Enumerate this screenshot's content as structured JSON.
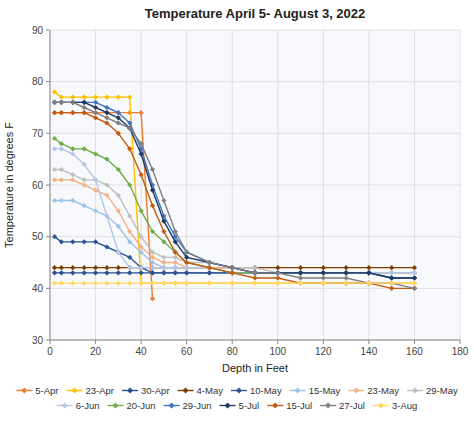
{
  "chart_data": {
    "type": "line",
    "title": "Temperature April 5- August 3, 2022",
    "xlabel": "Depth in Feet",
    "ylabel": "Temperature in degrees F",
    "xlim": [
      0,
      180
    ],
    "ylim": [
      30,
      90
    ],
    "xticks": [
      0,
      20,
      40,
      60,
      80,
      100,
      120,
      140,
      160,
      180
    ],
    "yticks": [
      30,
      40,
      50,
      60,
      70,
      80,
      90
    ],
    "grid": true,
    "legend": "bottom",
    "marker": "diamond",
    "series": [
      {
        "name": "5-Apr",
        "color": "#ed7d31",
        "x": [
          2,
          5,
          10,
          15,
          20,
          25,
          30,
          35,
          40,
          45
        ],
        "values": [
          74,
          74,
          74,
          74,
          74,
          74,
          74,
          74,
          74,
          38
        ]
      },
      {
        "name": "23-Apr",
        "color": "#ffc000",
        "x": [
          2,
          5,
          10,
          15,
          20,
          25,
          30,
          35,
          40,
          45,
          50,
          55,
          60,
          70,
          80,
          90,
          100,
          110,
          120,
          130,
          140,
          150,
          160
        ],
        "values": [
          78,
          77,
          77,
          77,
          77,
          77,
          77,
          77,
          41,
          41,
          41,
          41,
          41,
          41,
          41,
          41,
          41,
          41,
          41,
          41,
          41,
          41,
          41
        ]
      },
      {
        "name": "30-Apr",
        "color": "#264f8c",
        "x": [
          2,
          5,
          10,
          15,
          20,
          25,
          30,
          35,
          40,
          45,
          50,
          55,
          60,
          70,
          80,
          90,
          100,
          110,
          120,
          130,
          140,
          150,
          160
        ],
        "values": [
          43,
          43,
          43,
          43,
          43,
          43,
          43,
          43,
          43,
          43,
          43,
          43,
          43,
          43,
          43,
          43,
          43,
          43,
          43,
          43,
          43,
          43,
          43
        ]
      },
      {
        "name": "4-May",
        "color": "#7b3f00",
        "x": [
          2,
          5,
          10,
          15,
          20,
          25,
          30,
          35,
          40,
          45,
          50,
          55,
          60,
          70,
          80,
          90,
          100,
          110,
          120,
          130,
          140,
          150,
          160
        ],
        "values": [
          44,
          44,
          44,
          44,
          44,
          44,
          44,
          44,
          44,
          44,
          44,
          44,
          44,
          44,
          44,
          44,
          44,
          44,
          44,
          44,
          44,
          44,
          44
        ]
      },
      {
        "name": "10-May",
        "color": "#2f5597",
        "x": [
          2,
          5,
          10,
          15,
          20,
          25,
          30,
          35,
          40,
          45,
          50,
          55,
          60,
          70,
          80,
          90,
          100,
          110,
          120,
          130,
          140,
          150,
          160
        ],
        "values": [
          50,
          49,
          49,
          49,
          49,
          48,
          47,
          46,
          44,
          43,
          43,
          43,
          43,
          43,
          43,
          43,
          43,
          43,
          43,
          43,
          43,
          42,
          42
        ]
      },
      {
        "name": "15-May",
        "color": "#9dc3e6",
        "x": [
          2,
          5,
          10,
          15,
          20,
          25,
          30,
          35,
          40,
          45,
          50,
          55,
          60,
          70,
          80,
          90,
          100,
          110,
          120,
          130,
          140,
          150,
          160
        ],
        "values": [
          57,
          57,
          57,
          56,
          55,
          54,
          52,
          49,
          47,
          45,
          44,
          44,
          44,
          44,
          44,
          43,
          43,
          43,
          43,
          43,
          43,
          43,
          43
        ]
      },
      {
        "name": "23-May",
        "color": "#f4b183",
        "x": [
          2,
          5,
          10,
          15,
          20,
          25,
          30,
          35,
          40,
          45,
          50,
          55,
          60,
          70,
          80,
          90,
          100,
          110,
          120,
          130,
          140,
          150,
          160
        ],
        "values": [
          61,
          61,
          61,
          60,
          59,
          58,
          55,
          51,
          48,
          46,
          45,
          45,
          44,
          44,
          44,
          43,
          43,
          43,
          43,
          43,
          43,
          43,
          43
        ]
      },
      {
        "name": "29-May",
        "color": "#bfbfbf",
        "x": [
          2,
          5,
          10,
          15,
          20,
          25,
          30,
          35,
          40,
          45,
          50,
          55,
          60,
          70,
          80,
          90,
          100,
          110,
          120,
          130,
          140,
          150,
          160
        ],
        "values": [
          63,
          63,
          62,
          61,
          61,
          60,
          58,
          54,
          50,
          47,
          46,
          46,
          45,
          45,
          44,
          44,
          43,
          43,
          43,
          43,
          43,
          43,
          43
        ]
      },
      {
        "name": "6-Jun",
        "color": "#b4c7e7",
        "x": [
          2,
          5,
          10,
          15,
          20,
          25,
          30,
          35,
          40,
          45,
          50,
          55,
          60,
          70,
          80,
          90,
          100,
          110,
          120,
          130,
          140,
          150,
          160
        ],
        "values": [
          67,
          67,
          66,
          64,
          61,
          54,
          47,
          44,
          44,
          44,
          44,
          44,
          44,
          44,
          43,
          43,
          43,
          43,
          43,
          43,
          43,
          43,
          43
        ]
      },
      {
        "name": "20-Jun",
        "color": "#70ad47",
        "x": [
          2,
          5,
          10,
          15,
          20,
          25,
          30,
          35,
          40,
          45,
          50,
          55,
          60,
          70,
          80,
          90,
          100,
          110,
          120,
          130,
          140,
          150,
          160
        ],
        "values": [
          69,
          68,
          67,
          67,
          66,
          65,
          63,
          60,
          55,
          51,
          49,
          47,
          45,
          44,
          43,
          43,
          43,
          43,
          43,
          43,
          43,
          42,
          42
        ]
      },
      {
        "name": "29-Jun",
        "color": "#4472c4",
        "x": [
          2,
          5,
          10,
          15,
          20,
          25,
          30,
          35,
          40,
          45,
          50,
          55,
          60,
          70,
          80,
          90,
          100,
          110,
          120,
          130,
          140,
          150,
          160
        ],
        "values": [
          76,
          76,
          76,
          76,
          76,
          75,
          74,
          72,
          67,
          60,
          54,
          50,
          47,
          45,
          44,
          43,
          43,
          43,
          43,
          43,
          43,
          42,
          42
        ]
      },
      {
        "name": "5-Jul",
        "color": "#1f3864",
        "x": [
          2,
          5,
          10,
          15,
          20,
          25,
          30,
          35,
          40,
          45,
          50,
          55,
          60,
          70,
          80,
          90,
          100,
          110,
          120,
          130,
          140,
          150,
          160
        ],
        "values": [
          76,
          76,
          76,
          76,
          75,
          74,
          73,
          71,
          66,
          59,
          53,
          49,
          46,
          45,
          44,
          43,
          43,
          43,
          43,
          43,
          43,
          42,
          42
        ]
      },
      {
        "name": "15-Jul",
        "color": "#c55a11",
        "x": [
          2,
          5,
          10,
          15,
          20,
          25,
          30,
          35,
          40,
          45,
          50,
          55,
          60,
          70,
          80,
          90,
          100,
          110,
          120,
          130,
          140,
          150,
          160
        ],
        "values": [
          74,
          74,
          74,
          74,
          73,
          72,
          70,
          67,
          62,
          56,
          51,
          47,
          45,
          44,
          43,
          42,
          42,
          41,
          41,
          41,
          41,
          40,
          40
        ]
      },
      {
        "name": "27-Jul",
        "color": "#808080",
        "x": [
          2,
          5,
          10,
          15,
          20,
          25,
          30,
          35,
          40,
          45,
          50,
          55,
          60,
          70,
          80,
          90,
          100,
          110,
          120,
          130,
          140,
          150,
          160
        ],
        "values": [
          76,
          76,
          76,
          75,
          74,
          73,
          72,
          71,
          68,
          63,
          57,
          51,
          47,
          45,
          44,
          43,
          43,
          42,
          42,
          42,
          41,
          41,
          40
        ]
      },
      {
        "name": "3-Aug",
        "color": "#ffd966",
        "x": [
          2,
          5,
          10,
          15,
          20,
          25,
          30,
          35,
          40,
          45,
          50,
          55,
          60,
          70,
          80,
          90,
          100,
          110,
          120,
          130,
          140,
          150,
          160
        ],
        "values": [
          41,
          41,
          41,
          41,
          41,
          41,
          41,
          41,
          41,
          41,
          41,
          41,
          41,
          41,
          41,
          41,
          41,
          41,
          41,
          41,
          41,
          41,
          41
        ]
      }
    ]
  }
}
